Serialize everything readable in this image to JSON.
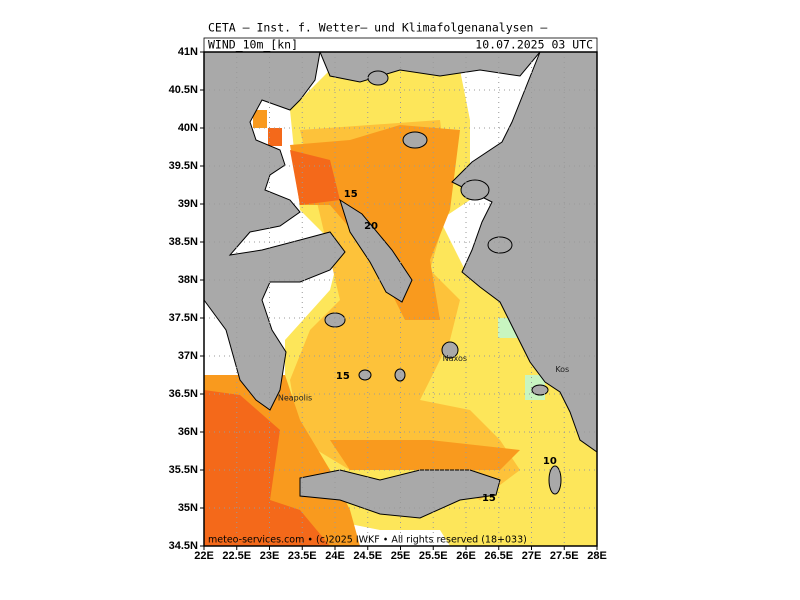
{
  "header": {
    "title": "CETA – Inst. f. Wetter– und Klimafolgenanalysen –",
    "parameter": "WIND_10m_[kn]",
    "valid": "10.07.2025 03 UTC"
  },
  "map": {
    "xlim": [
      22,
      28
    ],
    "ylim": [
      34.5,
      41
    ],
    "grid": true,
    "xticks": [
      {
        "value": 22,
        "label": "22E"
      },
      {
        "value": 22.5,
        "label": "22.5E"
      },
      {
        "value": 23,
        "label": "23E"
      },
      {
        "value": 23.5,
        "label": "23.5E"
      },
      {
        "value": 24,
        "label": "24E"
      },
      {
        "value": 24.5,
        "label": "24.5E"
      },
      {
        "value": 25,
        "label": "25E"
      },
      {
        "value": 25.5,
        "label": "25.5E"
      },
      {
        "value": 26,
        "label": "26E"
      },
      {
        "value": 26.5,
        "label": "26.5E"
      },
      {
        "value": 27,
        "label": "27E"
      },
      {
        "value": 27.5,
        "label": "27.5E"
      },
      {
        "value": 28,
        "label": "28E"
      }
    ],
    "yticks": [
      {
        "value": 34.5,
        "label": "34.5N"
      },
      {
        "value": 35,
        "label": "35N"
      },
      {
        "value": 35.5,
        "label": "35.5N"
      },
      {
        "value": 36,
        "label": "36N"
      },
      {
        "value": 36.5,
        "label": "36.5N"
      },
      {
        "value": 37,
        "label": "37N"
      },
      {
        "value": 37.5,
        "label": "37.5N"
      },
      {
        "value": 38,
        "label": "38N"
      },
      {
        "value": 38.5,
        "label": "38.5N"
      },
      {
        "value": 39,
        "label": "39N"
      },
      {
        "value": 39.5,
        "label": "39.5N"
      },
      {
        "value": 40,
        "label": "40N"
      },
      {
        "value": 40.5,
        "label": "40.5N"
      },
      {
        "value": 41,
        "label": "41N"
      }
    ],
    "contour_labels": [
      {
        "value": 15,
        "lon": 24.24,
        "lat": 39.13
      },
      {
        "value": 20,
        "lon": 24.55,
        "lat": 38.71
      },
      {
        "value": 15,
        "lon": 24.12,
        "lat": 36.74
      },
      {
        "value": 15,
        "lon": 26.35,
        "lat": 35.13
      },
      {
        "value": 10,
        "lon": 27.28,
        "lat": 35.62
      }
    ],
    "places": [
      {
        "name": "Naxos",
        "lon": 25.83,
        "lat": 36.97
      },
      {
        "name": "Kos",
        "lon": 27.47,
        "lat": 36.82
      },
      {
        "name": "Neapolis",
        "lon": 23.39,
        "lat": 36.45
      }
    ]
  },
  "footer": "meteo-services.com • (c)2025 IWKF • All rights reserved (18+033)"
}
